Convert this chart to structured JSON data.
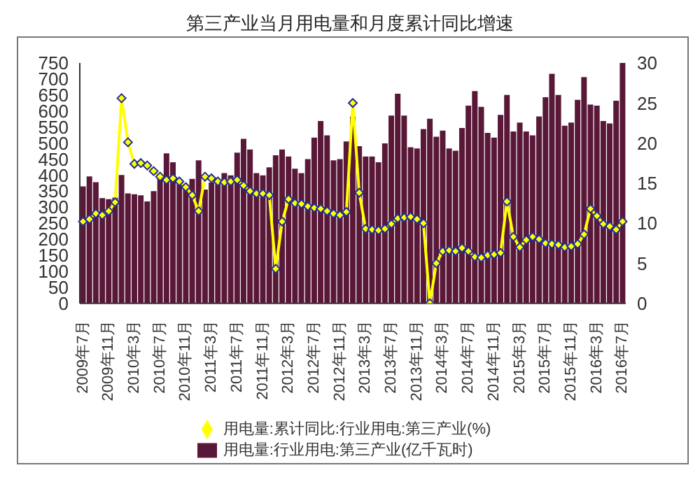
{
  "chart_data": {
    "type": "bar",
    "title": "第三产业当月用电量和月度累计同比增速",
    "categories": [
      "2009年7月",
      null,
      null,
      null,
      "2009年11月",
      null,
      null,
      null,
      "2010年3月",
      null,
      null,
      null,
      "2010年7月",
      null,
      null,
      null,
      "2010年11月",
      null,
      null,
      null,
      "2011年3月",
      null,
      null,
      null,
      "2011年7月",
      null,
      null,
      null,
      "2011年11月",
      null,
      null,
      null,
      "2012年3月",
      null,
      null,
      null,
      "2012年7月",
      null,
      null,
      null,
      "2012年11月",
      null,
      null,
      null,
      "2013年3月",
      null,
      null,
      null,
      "2013年7月",
      null,
      null,
      null,
      "2013年11月",
      null,
      null,
      null,
      "2014年3月",
      null,
      null,
      null,
      "2014年7月",
      null,
      null,
      null,
      "2014年11月",
      null,
      null,
      null,
      "2015年3月",
      null,
      null,
      null,
      "2015年7月",
      null,
      null,
      null,
      "2015年11月",
      null,
      null,
      null,
      "2016年3月",
      null,
      null,
      null,
      "2016年7月"
    ],
    "series": [
      {
        "name": "用电量:行业用电:第三产业(亿千瓦时)",
        "color": "#5a1838",
        "values": [
          365,
          396,
          378,
          328,
          325,
          330,
          400,
          343,
          340,
          337,
          318,
          350,
          399,
          468,
          440,
          377,
          362,
          388,
          446,
          355,
          377,
          372,
          406,
          399,
          470,
          513,
          480,
          406,
          399,
          424,
          462,
          480,
          458,
          420,
          406,
          450,
          517,
          569,
          524,
          446,
          450,
          505,
          583,
          490,
          458,
          458,
          440,
          499,
          586,
          654,
          586,
          487,
          483,
          544,
          576,
          520,
          539,
          483,
          476,
          547,
          617,
          662,
          613,
          532,
          517,
          588,
          650,
          536,
          564,
          536,
          524,
          583,
          643,
          716,
          650,
          554,
          564,
          635,
          706,
          620,
          617,
          569,
          561,
          632,
          750
        ]
      },
      {
        "name": "用电量:累计同比:行业用电:第三产业(%)",
        "type": "line",
        "axis": "y2",
        "color": "#ffff00",
        "values": [
          10.2,
          10.5,
          11.2,
          11.0,
          11.5,
          12.6,
          25.6,
          20.1,
          17.4,
          17.5,
          17.2,
          16.5,
          15.8,
          15.4,
          15.6,
          15.2,
          14.5,
          13.5,
          11.5,
          15.8,
          15.6,
          15.2,
          15.1,
          15.2,
          15.4,
          14.7,
          14.0,
          13.7,
          13.7,
          13.5,
          4.3,
          10.2,
          13.0,
          12.5,
          12.4,
          12.1,
          11.9,
          11.8,
          11.5,
          11.2,
          11.0,
          11.4,
          25.0,
          13.8,
          9.3,
          9.2,
          9.1,
          9.3,
          9.9,
          10.6,
          10.7,
          10.8,
          10.5,
          10.0,
          0,
          5.0,
          6.5,
          6.6,
          6.5,
          6.9,
          6.5,
          5.8,
          5.7,
          6.0,
          6.1,
          6.3,
          12.7,
          8.3,
          7.0,
          7.9,
          8.3,
          8.0,
          7.5,
          7.4,
          7.3,
          7.0,
          7.1,
          7.4,
          8.6,
          11.8,
          10.9,
          9.9,
          9.6,
          9.2,
          10.2
        ]
      }
    ],
    "ylim": [
      0,
      750
    ],
    "yticks": [
      0,
      50,
      100,
      150,
      200,
      250,
      300,
      350,
      400,
      450,
      500,
      550,
      600,
      650,
      700,
      750
    ],
    "y2lim": [
      0,
      30
    ],
    "y2ticks": [
      0,
      5,
      10,
      15,
      20,
      25,
      30
    ],
    "marker": "diamond",
    "legend": "bottom",
    "grid": false
  }
}
